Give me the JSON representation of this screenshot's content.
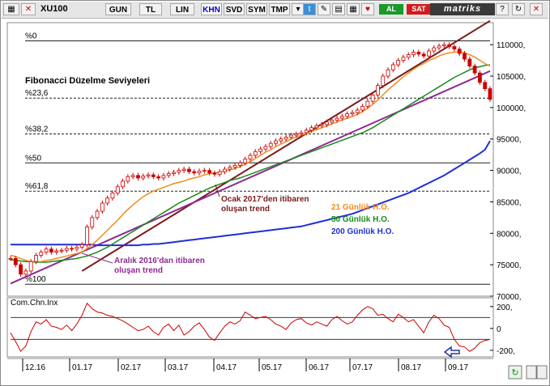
{
  "toolbar": {
    "symbol": "XU100",
    "buttons": [
      "GUN",
      "TL",
      "LIN",
      "KHN",
      "SVD",
      "SYM",
      "TMP"
    ],
    "selected": "KHN",
    "al_label": "AL",
    "sat_label": "SAT",
    "brand": "matriks"
  },
  "colors": {
    "price": "#cc0000",
    "ma21": "#f08c1e",
    "ma50": "#1a8a1a",
    "ma200": "#1f2fd6",
    "trend_ocak": "#7b1a1a",
    "trend_aralik": "#8e2a92",
    "cci": "#cc0000"
  },
  "chart_data": [
    {
      "type": "candlestick",
      "title": "Fibonacci Düzelme Seviyeleri",
      "ylim": [
        70000,
        113500
      ],
      "yticks": [
        70000,
        75000,
        80000,
        85000,
        90000,
        95000,
        100000,
        105000,
        110000
      ],
      "ytick_labels": [
        "70000,",
        "75000,",
        "80000,",
        "85000,",
        "90000,",
        "95000,",
        "100000,",
        "105000,",
        "110000,"
      ],
      "x_labels": [
        "12.16",
        "01.17",
        "02.17",
        "03.17",
        "04.17",
        "05.17",
        "06.17",
        "07.17",
        "08.17",
        "09.17"
      ],
      "fibonacci_levels": [
        {
          "label": "%0",
          "value": 110600
        },
        {
          "label": "%23,6",
          "value": 101500
        },
        {
          "label": "%38,2",
          "value": 95800
        },
        {
          "label": "%50",
          "value": 91200
        },
        {
          "label": "%61,8",
          "value": 86700
        },
        {
          "label": "%100",
          "value": 71900
        }
      ],
      "price_close": [
        76000,
        75000,
        73500,
        74000,
        75500,
        76500,
        77000,
        77500,
        77000,
        77200,
        77300,
        77600,
        77500,
        77800,
        78200,
        81000,
        82500,
        83500,
        84800,
        85600,
        86400,
        87400,
        88300,
        89000,
        89200,
        88800,
        89100,
        89300,
        89000,
        88800,
        89200,
        89500,
        89700,
        90000,
        90200,
        89800,
        89600,
        89900,
        90000,
        89600,
        89400,
        89800,
        90200,
        90500,
        90800,
        91200,
        91800,
        92400,
        93000,
        93400,
        93800,
        94300,
        94700,
        95000,
        95300,
        95600,
        95800,
        96000,
        96400,
        96800,
        97100,
        97300,
        97700,
        98000,
        98300,
        98600,
        99000,
        99200,
        99600,
        100200,
        101000,
        102000,
        103500,
        105000,
        106000,
        106800,
        107500,
        108000,
        108400,
        108800,
        108500,
        108200,
        109000,
        109500,
        109800,
        110000,
        109700,
        109300,
        108600,
        107700,
        106600,
        105500,
        104000,
        103000,
        101300
      ],
      "ma21": [
        76500,
        76300,
        76000,
        75700,
        75500,
        75500,
        75500,
        75700,
        75800,
        76000,
        76200,
        76400,
        76600,
        76800,
        77000,
        77600,
        78200,
        78900,
        79700,
        80500,
        81300,
        82100,
        83000,
        83800,
        84500,
        85200,
        85800,
        86300,
        86700,
        87000,
        87300,
        87600,
        87900,
        88100,
        88300,
        88600,
        88800,
        89000,
        89300,
        89500,
        89600,
        89700,
        89900,
        90100,
        90300,
        90600,
        91000,
        91400,
        91900,
        92400,
        92900,
        93300,
        93800,
        94200,
        94600,
        95000,
        95300,
        95600,
        95900,
        96200,
        96500,
        96800,
        97100,
        97400,
        97700,
        98000,
        98300,
        98600,
        98900,
        99400,
        99900,
        100500,
        101200,
        102000,
        102800,
        103500,
        104200,
        104900,
        105500,
        106100,
        106600,
        107000,
        107500,
        107800,
        108200,
        108500,
        108700,
        108800,
        108900,
        108700,
        108400,
        108000,
        107500,
        107000,
        106600
      ],
      "ma50": [
        75800,
        75700,
        75600,
        75500,
        75500,
        75400,
        75400,
        75400,
        75500,
        75600,
        75700,
        75800,
        75900,
        76000,
        76200,
        76400,
        76700,
        77000,
        77400,
        77800,
        78300,
        78800,
        79300,
        79800,
        80300,
        80800,
        81300,
        81800,
        82300,
        82800,
        83300,
        83800,
        84300,
        84800,
        85200,
        85600,
        86000,
        86400,
        86800,
        87200,
        87500,
        87800,
        88100,
        88400,
        88600,
        88800,
        89100,
        89400,
        89700,
        90000,
        90300,
        90600,
        90900,
        91200,
        91500,
        91800,
        92100,
        92400,
        92700,
        93000,
        93300,
        93600,
        93900,
        94200,
        94500,
        94800,
        95100,
        95400,
        95700,
        96000,
        96400,
        96800,
        97300,
        97800,
        98300,
        98800,
        99300,
        99800,
        100300,
        100800,
        101300,
        101800,
        102300,
        102800,
        103300,
        103800,
        104300,
        104800,
        105200,
        105600,
        106000,
        106300,
        106500,
        106700,
        106800
      ],
      "ma200": [
        78200,
        78200,
        78200,
        78200,
        78200,
        78200,
        78200,
        78200,
        78200,
        78200,
        78200,
        78200,
        78200,
        78200,
        78200,
        78200,
        78200,
        78100,
        78100,
        78100,
        78100,
        78100,
        78100,
        78100,
        78100,
        78100,
        78200,
        78200,
        78300,
        78300,
        78400,
        78500,
        78600,
        78700,
        78800,
        78900,
        79000,
        79100,
        79200,
        79300,
        79400,
        79500,
        79600,
        79700,
        79800,
        79900,
        80000,
        80100,
        80200,
        80300,
        80400,
        80500,
        80600,
        80700,
        80800,
        80900,
        81000,
        81100,
        81300,
        81500,
        81700,
        81900,
        82100,
        82300,
        82500,
        82700,
        82900,
        83100,
        83400,
        83700,
        84000,
        84300,
        84600,
        84900,
        85200,
        85500,
        85800,
        86100,
        86400,
        86800,
        87200,
        87600,
        88000,
        88400,
        88800,
        89200,
        89700,
        90200,
        90700,
        91200,
        91700,
        92200,
        92700,
        93300,
        94700
      ],
      "trendlines": [
        {
          "name": "Ocak 2017'den itibaren oluşan trend",
          "from": [
            14,
            74000
          ],
          "to": [
            94,
            113800
          ]
        },
        {
          "name": "Aralık 2016'dan itibaren oluşan trend",
          "from": [
            0,
            72000
          ],
          "to": [
            94,
            105800
          ]
        }
      ],
      "legend": [
        "21 Günlük H.O.",
        "50 Günlük H.O.",
        "200 Günlük H.O."
      ],
      "annotations": [
        {
          "text": "Ocak 2017'den itibaren",
          "line2": "oluşan trend"
        },
        {
          "text": "Aralık 2016'dan itibaren",
          "line2": "oluşan trend"
        }
      ]
    },
    {
      "type": "line",
      "title": "Com.Chn.Inx",
      "ylim": [
        -260,
        280
      ],
      "yticks": [
        200,
        0,
        -200
      ],
      "ytick_labels": [
        "200,",
        "0",
        "-200,"
      ],
      "levels": [
        100,
        -100
      ],
      "values": [
        -40,
        -120,
        -210,
        -160,
        -30,
        60,
        40,
        80,
        20,
        10,
        -10,
        30,
        -20,
        40,
        120,
        230,
        180,
        150,
        140,
        120,
        110,
        90,
        70,
        40,
        10,
        -20,
        -10,
        20,
        -30,
        -60,
        10,
        40,
        -20,
        30,
        -60,
        -30,
        20,
        50,
        -10,
        -80,
        -110,
        -40,
        20,
        60,
        40,
        70,
        150,
        120,
        90,
        100,
        110,
        80,
        40,
        20,
        -10,
        50,
        80,
        90,
        50,
        30,
        60,
        40,
        20,
        80,
        110,
        70,
        40,
        60,
        120,
        170,
        200,
        180,
        120,
        130,
        90,
        60,
        130,
        100,
        60,
        80,
        20,
        -40,
        60,
        120,
        90,
        30,
        10,
        -100,
        -160,
        -170,
        -210,
        -180,
        -130,
        -110,
        -100
      ]
    }
  ]
}
